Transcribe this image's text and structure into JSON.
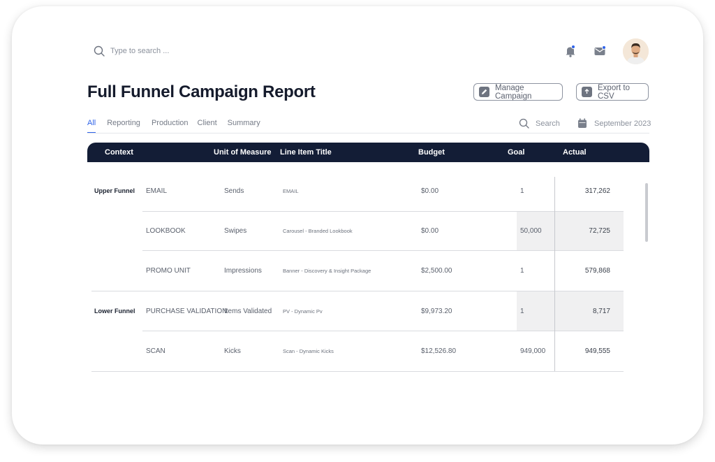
{
  "search": {
    "placeholder": "Type to search ..."
  },
  "page": {
    "title": "Full Funnel Campaign Report"
  },
  "actions": {
    "manage_label": "Manage Campaign",
    "export_label": "Export to CSV"
  },
  "tabs": [
    "All",
    "Reporting",
    "Production",
    "Client",
    "Summary"
  ],
  "tools": {
    "search_label": "Search",
    "date_label": "September 2023"
  },
  "table": {
    "columns": [
      "Context",
      "Unit of Measure",
      "Line Item Title",
      "Budget",
      "Goal",
      "Actual"
    ],
    "groups": [
      "Upper Funnel",
      "Lower Funnel"
    ],
    "rows": [
      {
        "context": "EMAIL",
        "unit": "Sends",
        "title": "EMAIL",
        "budget": "$0.00",
        "goal": "1",
        "actual": "317,262"
      },
      {
        "context": "LOOKBOOK",
        "unit": "Swipes",
        "title": "Carousel - Branded Lookbook",
        "budget": "$0.00",
        "goal": "50,000",
        "actual": "72,725"
      },
      {
        "context": "PROMO UNIT",
        "unit": "Impressions",
        "title": "Banner - Discovery & Insight Package",
        "budget": "$2,500.00",
        "goal": "1",
        "actual": "579,868"
      },
      {
        "context": "PURCHASE VALIDATION",
        "unit": "Items Validated",
        "title": "PV - Dynamic Pv",
        "budget": "$9,973.20",
        "goal": "1",
        "actual": "8,717"
      },
      {
        "context": "SCAN",
        "unit": "Kicks",
        "title": "Scan - Dynamic Kicks",
        "budget": "$12,526.80",
        "goal": "949,000",
        "actual": "949,555"
      }
    ]
  },
  "colors": {
    "accent": "#2f63e8",
    "header_bg": "#131d36",
    "shade": "#f0f0f1"
  }
}
